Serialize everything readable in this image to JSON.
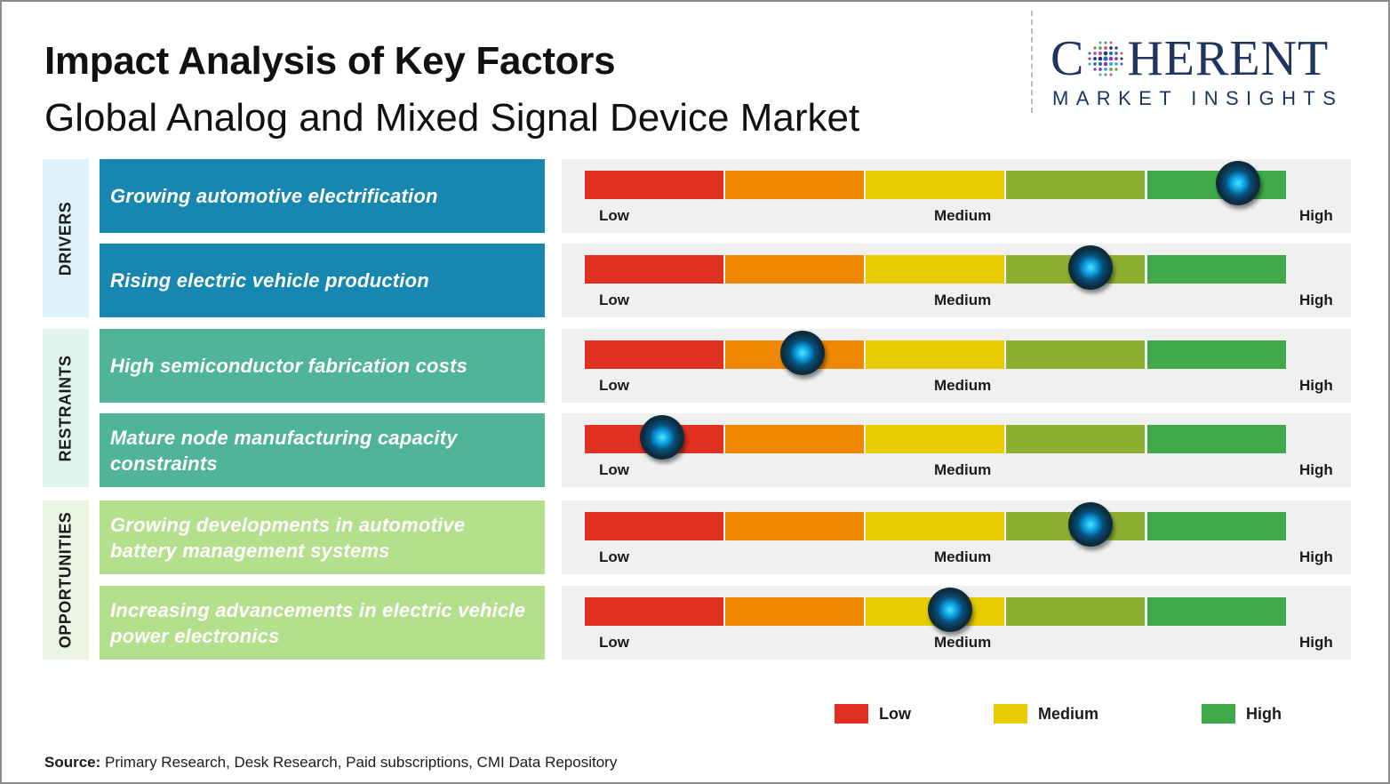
{
  "header": {
    "title": "Impact Analysis of Key Factors",
    "subtitle": "Global Analog and Mixed Signal Device Market"
  },
  "logo": {
    "word_start": "C",
    "word_end": "HERENT",
    "tagline": "MARKET INSIGHTS",
    "color": "#1e3560"
  },
  "scale": {
    "segment_colors": [
      "#e03020",
      "#ee8800",
      "#e6cc00",
      "#8caf30",
      "#40aa48"
    ],
    "tick_labels": {
      "low": "Low",
      "medium": "Medium",
      "high": "High"
    }
  },
  "chart_data": {
    "type": "table",
    "groups": [
      {
        "label": "DRIVERS",
        "label_bg": "#dff1fb",
        "box_color": "#1787b0",
        "factors": [
          {
            "text": "Growing automotive electrification",
            "impact": 0.93
          },
          {
            "text": "Rising electric vehicle production",
            "impact": 0.72
          }
        ]
      },
      {
        "label": "RESTRAINTS",
        "label_bg": "#e2f4ee",
        "box_color": "#50b496",
        "factors": [
          {
            "text": "High semiconductor fabrication costs",
            "impact": 0.31
          },
          {
            "text": "Mature node manufacturing capacity constraints",
            "impact": 0.11
          }
        ]
      },
      {
        "label": "OPPORTUNITIES",
        "label_bg": "#eaf6e1",
        "box_color": "#b4e08e",
        "factors": [
          {
            "text": "Growing developments in automotive battery management systems",
            "impact": 0.72
          },
          {
            "text": "Increasing advancements in electric vehicle power electronics",
            "impact": 0.52
          }
        ]
      }
    ],
    "legend": [
      {
        "label": "Low",
        "color": "#e03020"
      },
      {
        "label": "Medium",
        "color": "#e6cc00"
      },
      {
        "label": "High",
        "color": "#40aa48"
      }
    ]
  },
  "footer": {
    "source_label": "Source:",
    "source_text": " Primary Research, Desk Research, Paid subscriptions, CMI Data Repository"
  }
}
